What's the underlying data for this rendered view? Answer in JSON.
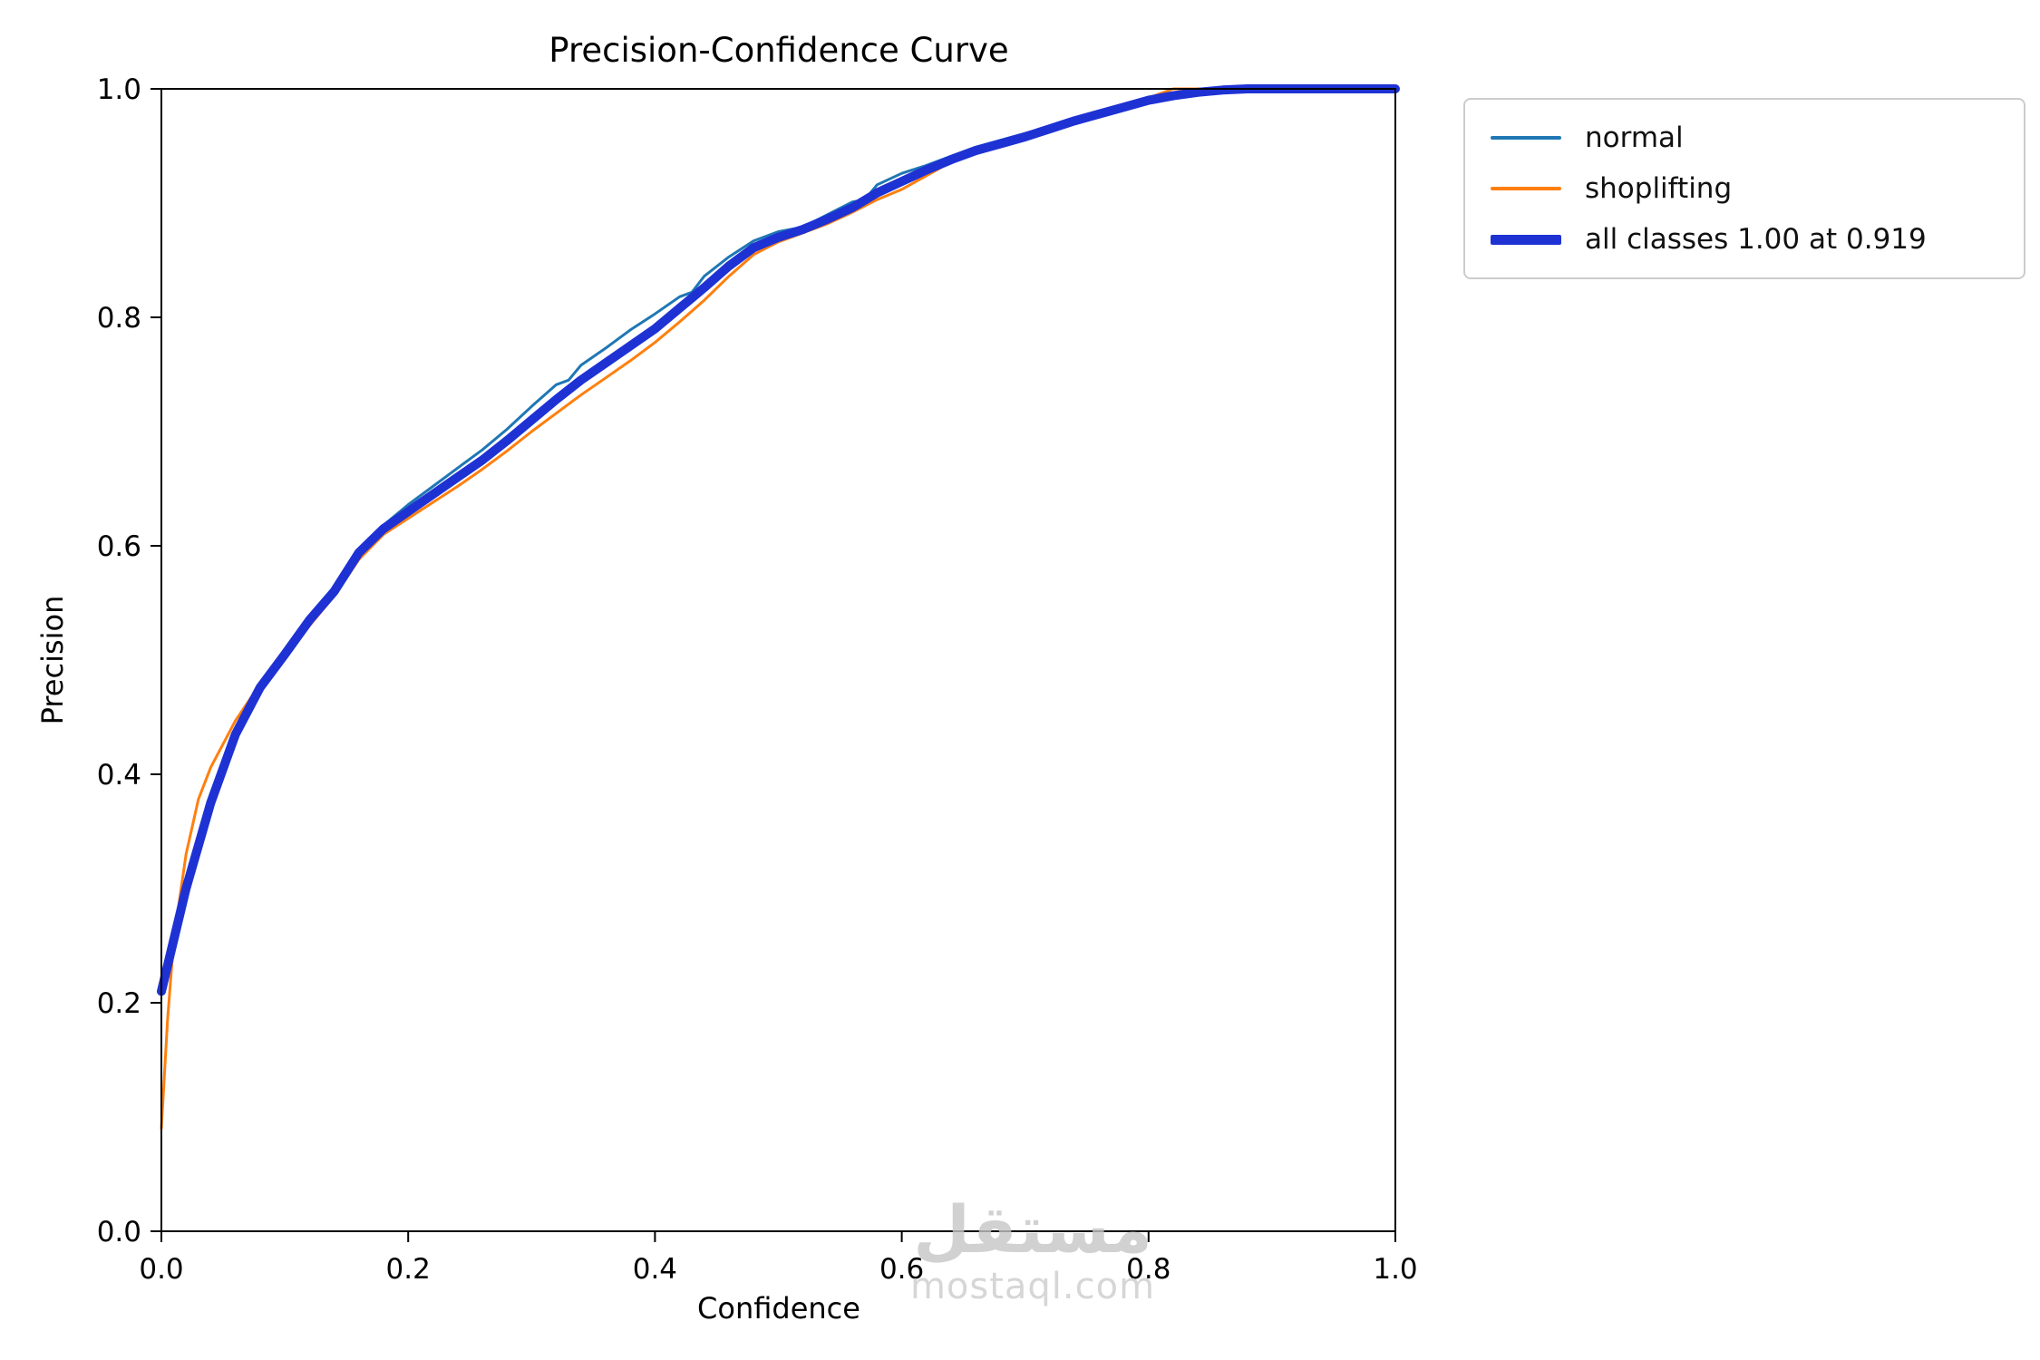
{
  "chart_data": {
    "type": "line",
    "title": "Precision-Confidence Curve",
    "xlabel": "Confidence",
    "ylabel": "Precision",
    "xlim": [
      0,
      1
    ],
    "ylim": [
      0,
      1
    ],
    "xticks": [
      "0.0",
      "0.2",
      "0.4",
      "0.6",
      "0.8",
      "1.0"
    ],
    "yticks": [
      "0.0",
      "0.2",
      "0.4",
      "0.6",
      "0.8",
      "1.0"
    ],
    "grid": false,
    "legend_position": "upper right outside plot",
    "annotation": {
      "all_classes_precision": "1.00",
      "at_confidence": "0.919"
    },
    "series": [
      {
        "name": "normal",
        "color": "#1f77b4",
        "line_width": 3,
        "points": [
          [
            0.0,
            0.21
          ],
          [
            0.02,
            0.296
          ],
          [
            0.04,
            0.372
          ],
          [
            0.06,
            0.433
          ],
          [
            0.08,
            0.475
          ],
          [
            0.1,
            0.507
          ],
          [
            0.12,
            0.537
          ],
          [
            0.14,
            0.563
          ],
          [
            0.16,
            0.597
          ],
          [
            0.18,
            0.618
          ],
          [
            0.2,
            0.636
          ],
          [
            0.22,
            0.652
          ],
          [
            0.24,
            0.668
          ],
          [
            0.26,
            0.684
          ],
          [
            0.28,
            0.702
          ],
          [
            0.3,
            0.722
          ],
          [
            0.32,
            0.741
          ],
          [
            0.33,
            0.745
          ],
          [
            0.34,
            0.758
          ],
          [
            0.36,
            0.773
          ],
          [
            0.38,
            0.789
          ],
          [
            0.4,
            0.803
          ],
          [
            0.42,
            0.818
          ],
          [
            0.43,
            0.822
          ],
          [
            0.44,
            0.836
          ],
          [
            0.46,
            0.853
          ],
          [
            0.48,
            0.867
          ],
          [
            0.5,
            0.875
          ],
          [
            0.52,
            0.879
          ],
          [
            0.54,
            0.89
          ],
          [
            0.56,
            0.901
          ],
          [
            0.57,
            0.903
          ],
          [
            0.58,
            0.916
          ],
          [
            0.6,
            0.926
          ],
          [
            0.62,
            0.933
          ],
          [
            0.64,
            0.941
          ],
          [
            0.66,
            0.949
          ],
          [
            0.68,
            0.955
          ],
          [
            0.7,
            0.961
          ],
          [
            0.72,
            0.967
          ],
          [
            0.74,
            0.973
          ],
          [
            0.76,
            0.979
          ],
          [
            0.78,
            0.985
          ],
          [
            0.8,
            0.99
          ],
          [
            0.82,
            0.994
          ],
          [
            0.84,
            0.997
          ],
          [
            0.86,
            0.999
          ],
          [
            0.88,
            1.0
          ],
          [
            1.0,
            1.0
          ]
        ]
      },
      {
        "name": "shoplifting",
        "color": "#ff7f0e",
        "line_width": 3,
        "points": [
          [
            0.0,
            0.09
          ],
          [
            0.005,
            0.185
          ],
          [
            0.01,
            0.255
          ],
          [
            0.02,
            0.33
          ],
          [
            0.03,
            0.378
          ],
          [
            0.04,
            0.406
          ],
          [
            0.06,
            0.447
          ],
          [
            0.08,
            0.479
          ],
          [
            0.1,
            0.502
          ],
          [
            0.12,
            0.53
          ],
          [
            0.14,
            0.556
          ],
          [
            0.16,
            0.588
          ],
          [
            0.18,
            0.61
          ],
          [
            0.2,
            0.624
          ],
          [
            0.22,
            0.638
          ],
          [
            0.24,
            0.652
          ],
          [
            0.26,
            0.667
          ],
          [
            0.28,
            0.683
          ],
          [
            0.3,
            0.7
          ],
          [
            0.32,
            0.716
          ],
          [
            0.34,
            0.732
          ],
          [
            0.36,
            0.747
          ],
          [
            0.38,
            0.762
          ],
          [
            0.4,
            0.778
          ],
          [
            0.42,
            0.796
          ],
          [
            0.44,
            0.815
          ],
          [
            0.46,
            0.836
          ],
          [
            0.48,
            0.855
          ],
          [
            0.5,
            0.866
          ],
          [
            0.52,
            0.874
          ],
          [
            0.54,
            0.882
          ],
          [
            0.56,
            0.892
          ],
          [
            0.58,
            0.903
          ],
          [
            0.6,
            0.912
          ],
          [
            0.62,
            0.924
          ],
          [
            0.64,
            0.936
          ],
          [
            0.66,
            0.944
          ],
          [
            0.68,
            0.951
          ],
          [
            0.7,
            0.958
          ],
          [
            0.72,
            0.966
          ],
          [
            0.74,
            0.972
          ],
          [
            0.76,
            0.978
          ],
          [
            0.78,
            0.985
          ],
          [
            0.8,
            0.992
          ],
          [
            0.82,
            1.0
          ],
          [
            1.0,
            1.0
          ]
        ]
      },
      {
        "name": "all classes 1.00 at 0.919",
        "color": "#1e32d4",
        "line_width": 10,
        "points": [
          [
            0.0,
            0.21
          ],
          [
            0.02,
            0.3
          ],
          [
            0.04,
            0.375
          ],
          [
            0.06,
            0.435
          ],
          [
            0.08,
            0.476
          ],
          [
            0.1,
            0.505
          ],
          [
            0.12,
            0.535
          ],
          [
            0.14,
            0.56
          ],
          [
            0.16,
            0.594
          ],
          [
            0.18,
            0.615
          ],
          [
            0.2,
            0.63
          ],
          [
            0.22,
            0.645
          ],
          [
            0.24,
            0.66
          ],
          [
            0.26,
            0.675
          ],
          [
            0.28,
            0.692
          ],
          [
            0.3,
            0.71
          ],
          [
            0.32,
            0.728
          ],
          [
            0.34,
            0.745
          ],
          [
            0.36,
            0.76
          ],
          [
            0.38,
            0.775
          ],
          [
            0.4,
            0.79
          ],
          [
            0.42,
            0.808
          ],
          [
            0.44,
            0.826
          ],
          [
            0.46,
            0.845
          ],
          [
            0.48,
            0.861
          ],
          [
            0.5,
            0.87
          ],
          [
            0.52,
            0.877
          ],
          [
            0.54,
            0.886
          ],
          [
            0.56,
            0.896
          ],
          [
            0.58,
            0.909
          ],
          [
            0.6,
            0.919
          ],
          [
            0.62,
            0.929
          ],
          [
            0.64,
            0.938
          ],
          [
            0.66,
            0.946
          ],
          [
            0.68,
            0.952
          ],
          [
            0.7,
            0.958
          ],
          [
            0.72,
            0.965
          ],
          [
            0.74,
            0.972
          ],
          [
            0.76,
            0.978
          ],
          [
            0.78,
            0.984
          ],
          [
            0.8,
            0.99
          ],
          [
            0.82,
            0.994
          ],
          [
            0.84,
            0.997
          ],
          [
            0.86,
            0.999
          ],
          [
            0.88,
            1.0
          ],
          [
            0.919,
            1.0
          ],
          [
            1.0,
            1.0
          ]
        ]
      }
    ]
  },
  "watermark": {
    "arabic": "مستقل",
    "domain": "mostaql.com"
  }
}
